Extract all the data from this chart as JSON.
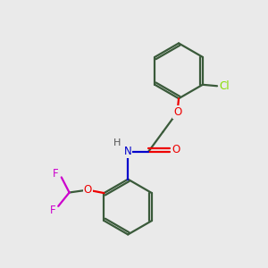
{
  "bg_color": "#eaeaea",
  "bond_color": "#3a5a3a",
  "bond_width": 1.6,
  "atom_colors": {
    "O": "#ee0000",
    "N": "#0000cc",
    "Cl": "#88dd00",
    "F": "#cc00cc",
    "H": "#555555",
    "C": "#3a5a3a"
  },
  "font_size_atom": 8.5
}
